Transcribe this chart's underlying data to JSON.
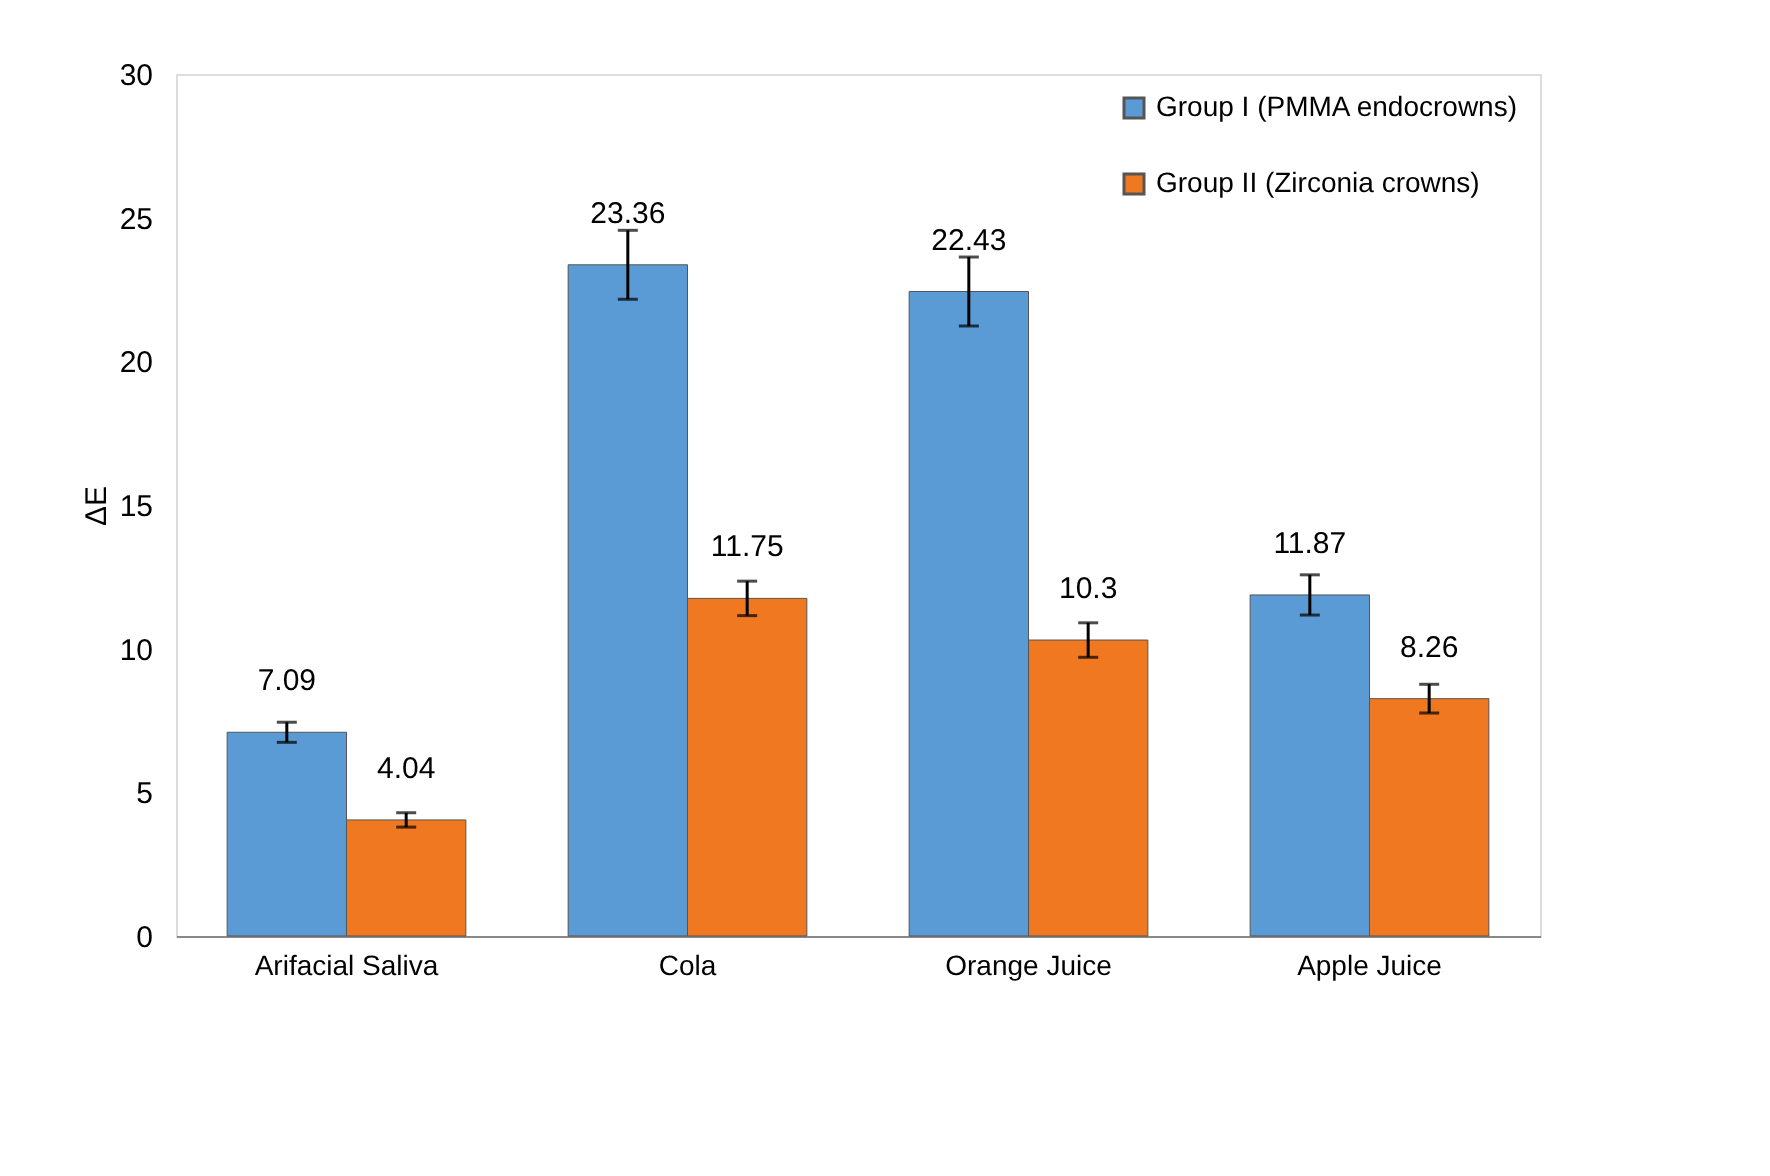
{
  "chart_data": {
    "type": "bar",
    "ylabel": "ΔE",
    "categories": [
      "Arifacial Saliva",
      "Cola",
      "Orange Juice",
      "Apple Juice"
    ],
    "series": [
      {
        "name": "Group I (PMMA endocrowns)",
        "color": "#5b9bd5",
        "values": [
          7.09,
          23.36,
          22.43,
          11.87
        ],
        "errors": [
          0.35,
          1.2,
          1.2,
          0.7
        ]
      },
      {
        "name": "Group II (Zirconia crowns)",
        "color": "#f07820",
        "values": [
          4.04,
          11.75,
          10.3,
          8.26
        ],
        "errors": [
          0.25,
          0.6,
          0.6,
          0.5
        ]
      }
    ],
    "ylim": [
      0,
      30
    ],
    "yticks": [
      0,
      5,
      10,
      15,
      20,
      25,
      30
    ],
    "data_labels": true,
    "grid": false,
    "legend": "top right"
  }
}
